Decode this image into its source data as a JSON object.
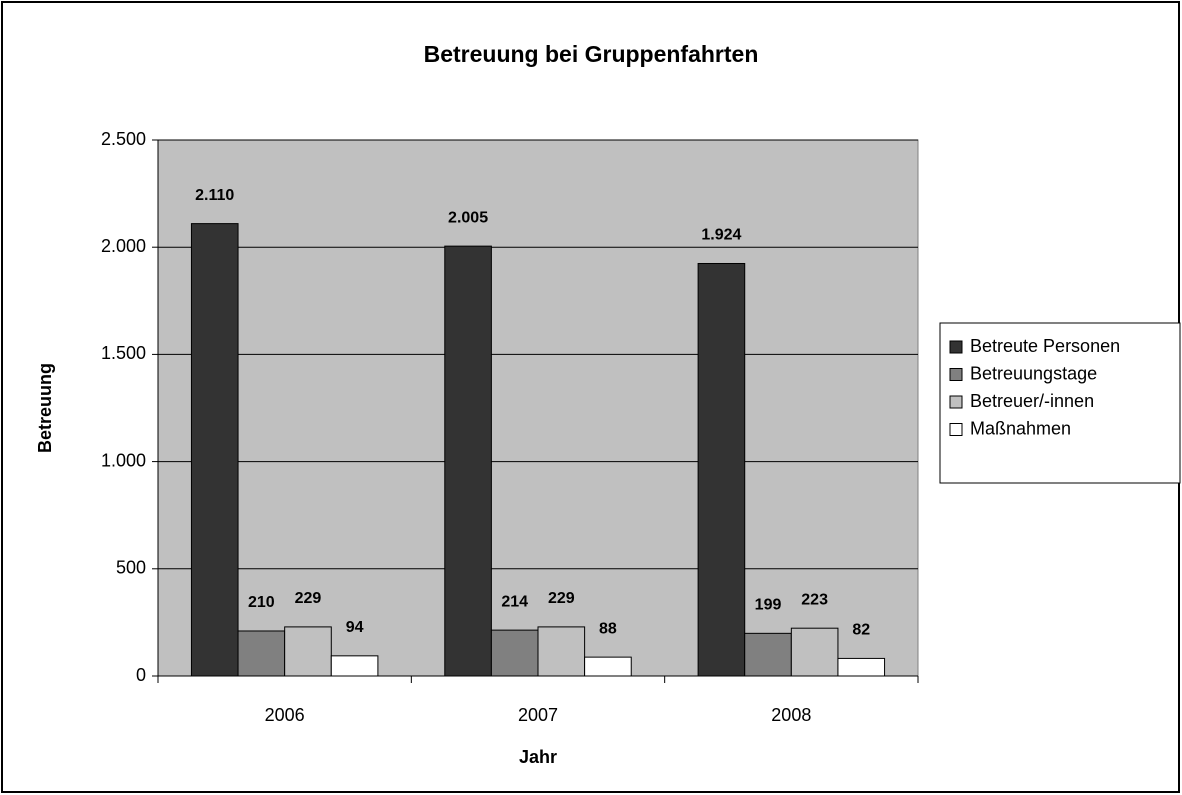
{
  "chart_data": {
    "type": "bar",
    "title": "Betreuung bei Gruppenfahrten",
    "xlabel": "Jahr",
    "ylabel": "Betreuung",
    "categories": [
      "2006",
      "2007",
      "2008"
    ],
    "series": [
      {
        "name": "Betreute Personen",
        "color": "#333333",
        "values": [
          2110,
          2005,
          1924
        ],
        "value_labels": [
          "2.110",
          "2.005",
          "1.924"
        ]
      },
      {
        "name": "Betreuungstage",
        "color": "#808080",
        "values": [
          210,
          214,
          199
        ]
      },
      {
        "name": "Betreuer/-innen",
        "color": "#c0c0c0",
        "values": [
          229,
          229,
          223
        ]
      },
      {
        "name": "Maßnahmen",
        "color": "#ffffff",
        "values": [
          94,
          88,
          82
        ]
      }
    ],
    "ylim": [
      0,
      2500
    ],
    "yticks": [
      0,
      500,
      {
        "value": 1000,
        "label": "1.000"
      },
      {
        "value": 1500,
        "label": "1.500"
      },
      {
        "value": 2000,
        "label": "2.000"
      },
      {
        "value": 2500,
        "label": "2.500"
      }
    ],
    "grid": true,
    "plot_background": "#c0c0c0",
    "legend": "right"
  }
}
